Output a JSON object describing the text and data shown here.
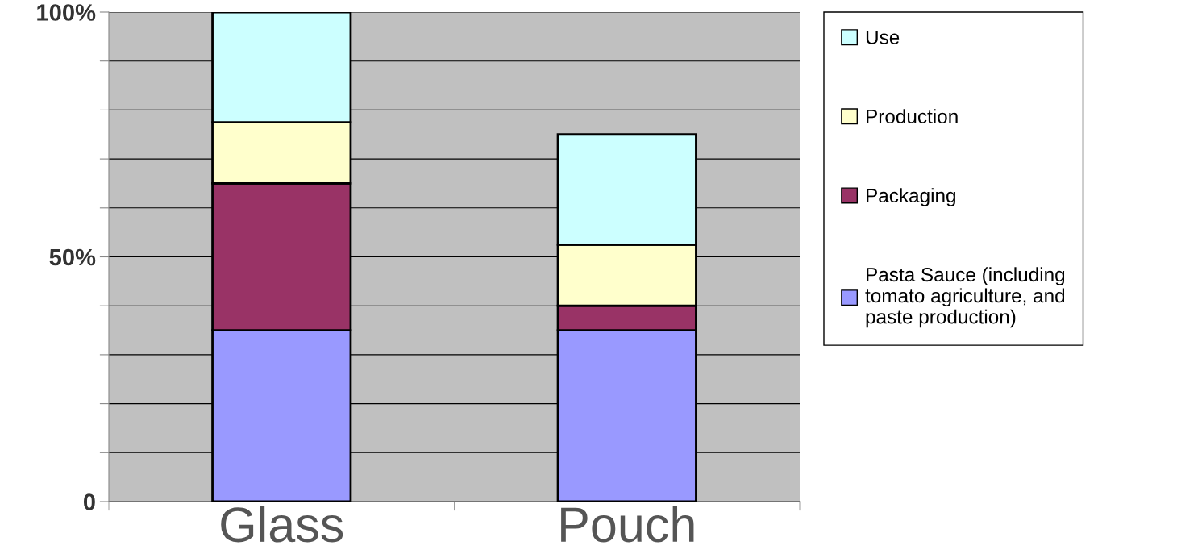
{
  "chart_data": {
    "type": "bar",
    "stacked": true,
    "categories": [
      "Glass",
      "Pouch"
    ],
    "series": [
      {
        "name": "Pasta Sauce (including\ntomato agriculture, and\npaste production)",
        "color": "#9999ff",
        "values": [
          35,
          35
        ]
      },
      {
        "name": "Packaging",
        "color": "#993366",
        "values": [
          30,
          5
        ]
      },
      {
        "name": "Production",
        "color": "#ffffcc",
        "values": [
          12.5,
          12.5
        ]
      },
      {
        "name": "Use",
        "color": "#ccffff",
        "values": [
          22.5,
          22.5
        ]
      }
    ],
    "ylim": [
      0,
      100
    ],
    "yticks": [
      0,
      {
        "value": 10,
        "label": null
      },
      {
        "value": 20,
        "label": null
      },
      {
        "value": 30,
        "label": null
      },
      {
        "value": 40,
        "label": null
      },
      {
        "value": 50,
        "label": "50%"
      },
      {
        "value": 60,
        "label": null
      },
      {
        "value": 70,
        "label": null
      },
      {
        "value": 80,
        "label": null
      },
      {
        "value": 90,
        "label": null
      },
      {
        "value": 100,
        "label": "100%"
      }
    ],
    "grid": "y",
    "legend": "right"
  }
}
